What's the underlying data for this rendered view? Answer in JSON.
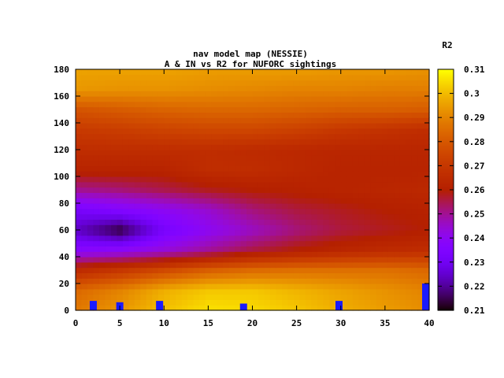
{
  "chart_data": {
    "type": "heatmap",
    "title_line1": "nav model map (NESSIE)",
    "title_line2": "A & IN vs R2 for NUFORC sightings",
    "colorbar_label": "R2",
    "xlim": [
      0,
      40
    ],
    "ylim": [
      0,
      180
    ],
    "zlim": [
      0.21,
      0.31
    ],
    "x_ticks": [
      "0",
      "5",
      "10",
      "15",
      "20",
      "25",
      "30",
      "35",
      "40"
    ],
    "y_ticks": [
      "0",
      "20",
      "40",
      "60",
      "80",
      "100",
      "120",
      "140",
      "160",
      "180"
    ],
    "colorbar_ticks": [
      "0.21",
      "0.22",
      "0.23",
      "0.24",
      "0.25",
      "0.26",
      "0.27",
      "0.28",
      "0.29",
      "0.3",
      "0.31"
    ],
    "palette": "black-purple-red-orange-yellow",
    "heatmap_rows": [
      {
        "y": 180,
        "z": [
          0.296,
          0.296,
          0.296,
          0.295,
          0.295,
          0.295,
          0.294,
          0.294,
          0.293
        ]
      },
      {
        "y": 165,
        "z": [
          0.294,
          0.293,
          0.293,
          0.292,
          0.291,
          0.29,
          0.29,
          0.289,
          0.289
        ]
      },
      {
        "y": 150,
        "z": [
          0.279,
          0.281,
          0.283,
          0.284,
          0.284,
          0.283,
          0.282,
          0.282,
          0.281
        ]
      },
      {
        "y": 135,
        "z": [
          0.271,
          0.272,
          0.274,
          0.275,
          0.275,
          0.273,
          0.27,
          0.268,
          0.266
        ]
      },
      {
        "y": 120,
        "z": [
          0.266,
          0.266,
          0.266,
          0.266,
          0.265,
          0.264,
          0.263,
          0.263,
          0.263
        ]
      },
      {
        "y": 105,
        "z": [
          0.262,
          0.262,
          0.262,
          0.266,
          0.266,
          0.264,
          0.262,
          0.262,
          0.262
        ]
      },
      {
        "y": 90,
        "z": [
          0.25,
          0.252,
          0.255,
          0.258,
          0.26,
          0.261,
          0.262,
          0.263,
          0.264
        ]
      },
      {
        "y": 75,
        "z": [
          0.232,
          0.236,
          0.24,
          0.245,
          0.252,
          0.256,
          0.258,
          0.26,
          0.261
        ]
      },
      {
        "y": 60,
        "z": [
          0.224,
          0.213,
          0.232,
          0.24,
          0.246,
          0.252,
          0.256,
          0.258,
          0.26
        ]
      },
      {
        "y": 45,
        "z": [
          0.238,
          0.24,
          0.244,
          0.25,
          0.256,
          0.26,
          0.263,
          0.265,
          0.266
        ]
      },
      {
        "y": 30,
        "z": [
          0.265,
          0.27,
          0.276,
          0.282,
          0.285,
          0.286,
          0.286,
          0.286,
          0.284
        ]
      },
      {
        "y": 15,
        "z": [
          0.284,
          0.29,
          0.298,
          0.302,
          0.302,
          0.299,
          0.296,
          0.293,
          0.29
        ]
      },
      {
        "y": 0,
        "z": [
          0.288,
          0.294,
          0.301,
          0.306,
          0.305,
          0.302,
          0.298,
          0.295,
          0.292
        ]
      }
    ],
    "heatmap_x": [
      0,
      5,
      10,
      15,
      20,
      25,
      30,
      35,
      40
    ],
    "markers": [
      {
        "x": 2,
        "y": 7
      },
      {
        "x": 5,
        "y": 6
      },
      {
        "x": 9.5,
        "y": 7
      },
      {
        "x": 19,
        "y": 5
      },
      {
        "x": 29.8,
        "y": 7
      },
      {
        "x": 39.6,
        "y": 20
      }
    ],
    "marker_color": "#1a1aff"
  }
}
